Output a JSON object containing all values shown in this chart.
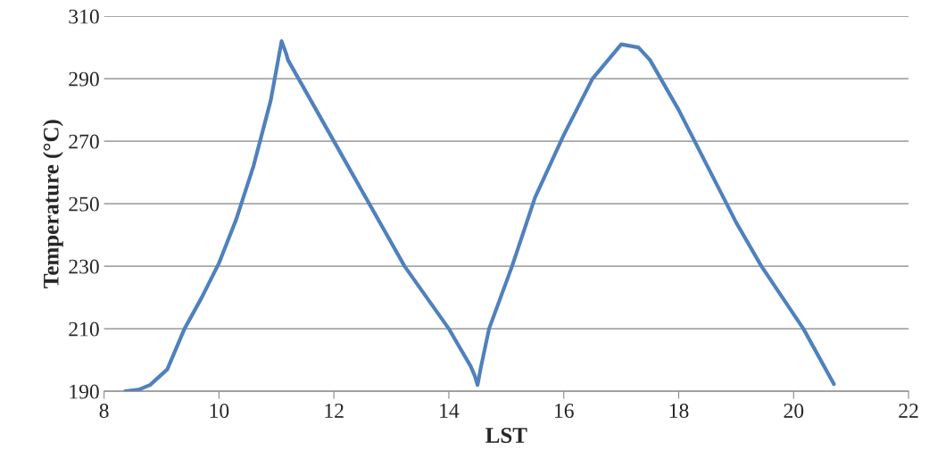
{
  "chart_data": {
    "type": "line",
    "xlabel": "LST",
    "ylabel": "Temperature (°C)",
    "series": [
      {
        "color": "#4f81bd",
        "x": [
          8.37,
          8.6,
          8.8,
          9.1,
          9.4,
          9.7,
          10.0,
          10.3,
          10.6,
          10.9,
          11.09,
          11.17,
          11.2,
          12.0,
          13.23,
          14.0,
          14.38,
          14.45,
          14.5,
          14.55,
          14.7,
          15.1,
          15.5,
          16.0,
          16.5,
          17.0,
          17.3,
          17.5,
          18.0,
          18.5,
          19.0,
          19.44,
          20.17,
          20.7
        ],
        "values": [
          190,
          190.5,
          192,
          197,
          210,
          220,
          231,
          245,
          262,
          283,
          302,
          298,
          296,
          270,
          230,
          210,
          198,
          195,
          192,
          197,
          210,
          230,
          252,
          272,
          290,
          301,
          300,
          296,
          280,
          262,
          244,
          230,
          210,
          192.3
        ]
      }
    ],
    "xlim": [
      8,
      22
    ],
    "xticks": [
      8,
      10,
      12,
      14,
      16,
      18,
      20,
      22
    ],
    "ylim": [
      190,
      310
    ],
    "yticks": [
      190,
      210,
      230,
      250,
      270,
      290,
      310
    ],
    "grid": "y",
    "legend": false,
    "marker": "none",
    "line_style": "solid"
  }
}
